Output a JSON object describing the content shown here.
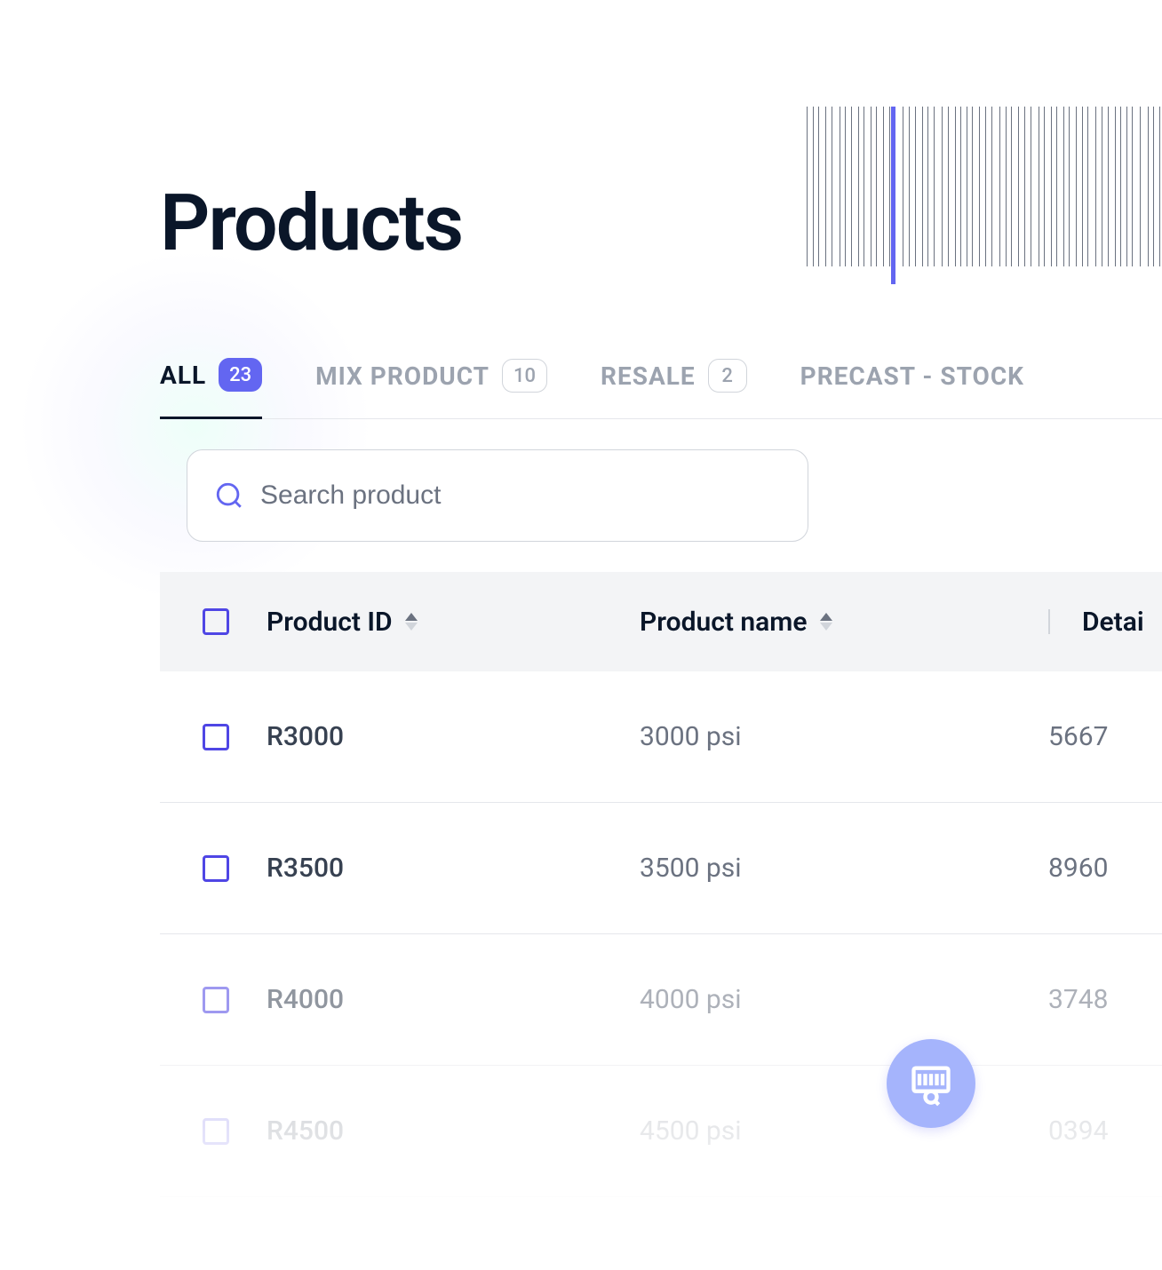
{
  "page": {
    "title": "Products"
  },
  "tabs": {
    "items": [
      {
        "label": "ALL",
        "count": "23",
        "active": true
      },
      {
        "label": "MIX PRODUCT",
        "count": "10",
        "active": false
      },
      {
        "label": "RESALE",
        "count": "2",
        "active": false
      },
      {
        "label": "PRECAST - STOCK",
        "count": "",
        "active": false
      }
    ]
  },
  "search": {
    "placeholder": "Search product"
  },
  "table": {
    "columns": {
      "product_id": "Product ID",
      "product_name": "Product name",
      "details": "Detai"
    },
    "rows": [
      {
        "id": "R3000",
        "name": "3000 psi",
        "details": "5667"
      },
      {
        "id": "R3500",
        "name": "3500 psi",
        "details": "8960"
      },
      {
        "id": "R4000",
        "name": "4000 psi",
        "details": "3748"
      },
      {
        "id": "R4500",
        "name": "4500 psi",
        "details": "0394"
      }
    ]
  },
  "barcode": {
    "line_widths": [
      3,
      2,
      5,
      2,
      3,
      7,
      2,
      4,
      2,
      3,
      6,
      2,
      3,
      5,
      2,
      4,
      3,
      2,
      6,
      3,
      2,
      5,
      2,
      4,
      7,
      2,
      3,
      2,
      5,
      3,
      2,
      4,
      6,
      2,
      3,
      5,
      2,
      4,
      3,
      7,
      2,
      3,
      5,
      2,
      4,
      2,
      6,
      3,
      2,
      5,
      3,
      2,
      4,
      7,
      2,
      3
    ],
    "line_gaps": [
      4,
      3,
      5,
      3,
      6,
      3,
      4,
      5,
      3,
      4,
      3,
      5,
      4,
      3,
      6,
      3,
      4,
      5,
      3,
      4,
      6,
      3,
      5,
      3,
      4,
      3,
      5,
      4,
      3,
      6,
      4,
      3,
      5,
      3,
      4,
      6,
      3,
      5,
      3,
      4,
      3,
      5,
      4,
      3,
      6,
      4,
      3,
      5,
      3,
      4,
      3,
      6,
      5,
      3,
      4,
      3
    ],
    "line_color": "#6b7280",
    "scanner_color": "#6366f1"
  },
  "colors": {
    "primary_text": "#0a1629",
    "secondary_text": "#6b7280",
    "accent": "#6366f1",
    "accent_light": "#a5b4fc",
    "checkbox_border": "#4f46e5",
    "border": "#e5e7eb",
    "header_bg": "#f3f4f6"
  }
}
